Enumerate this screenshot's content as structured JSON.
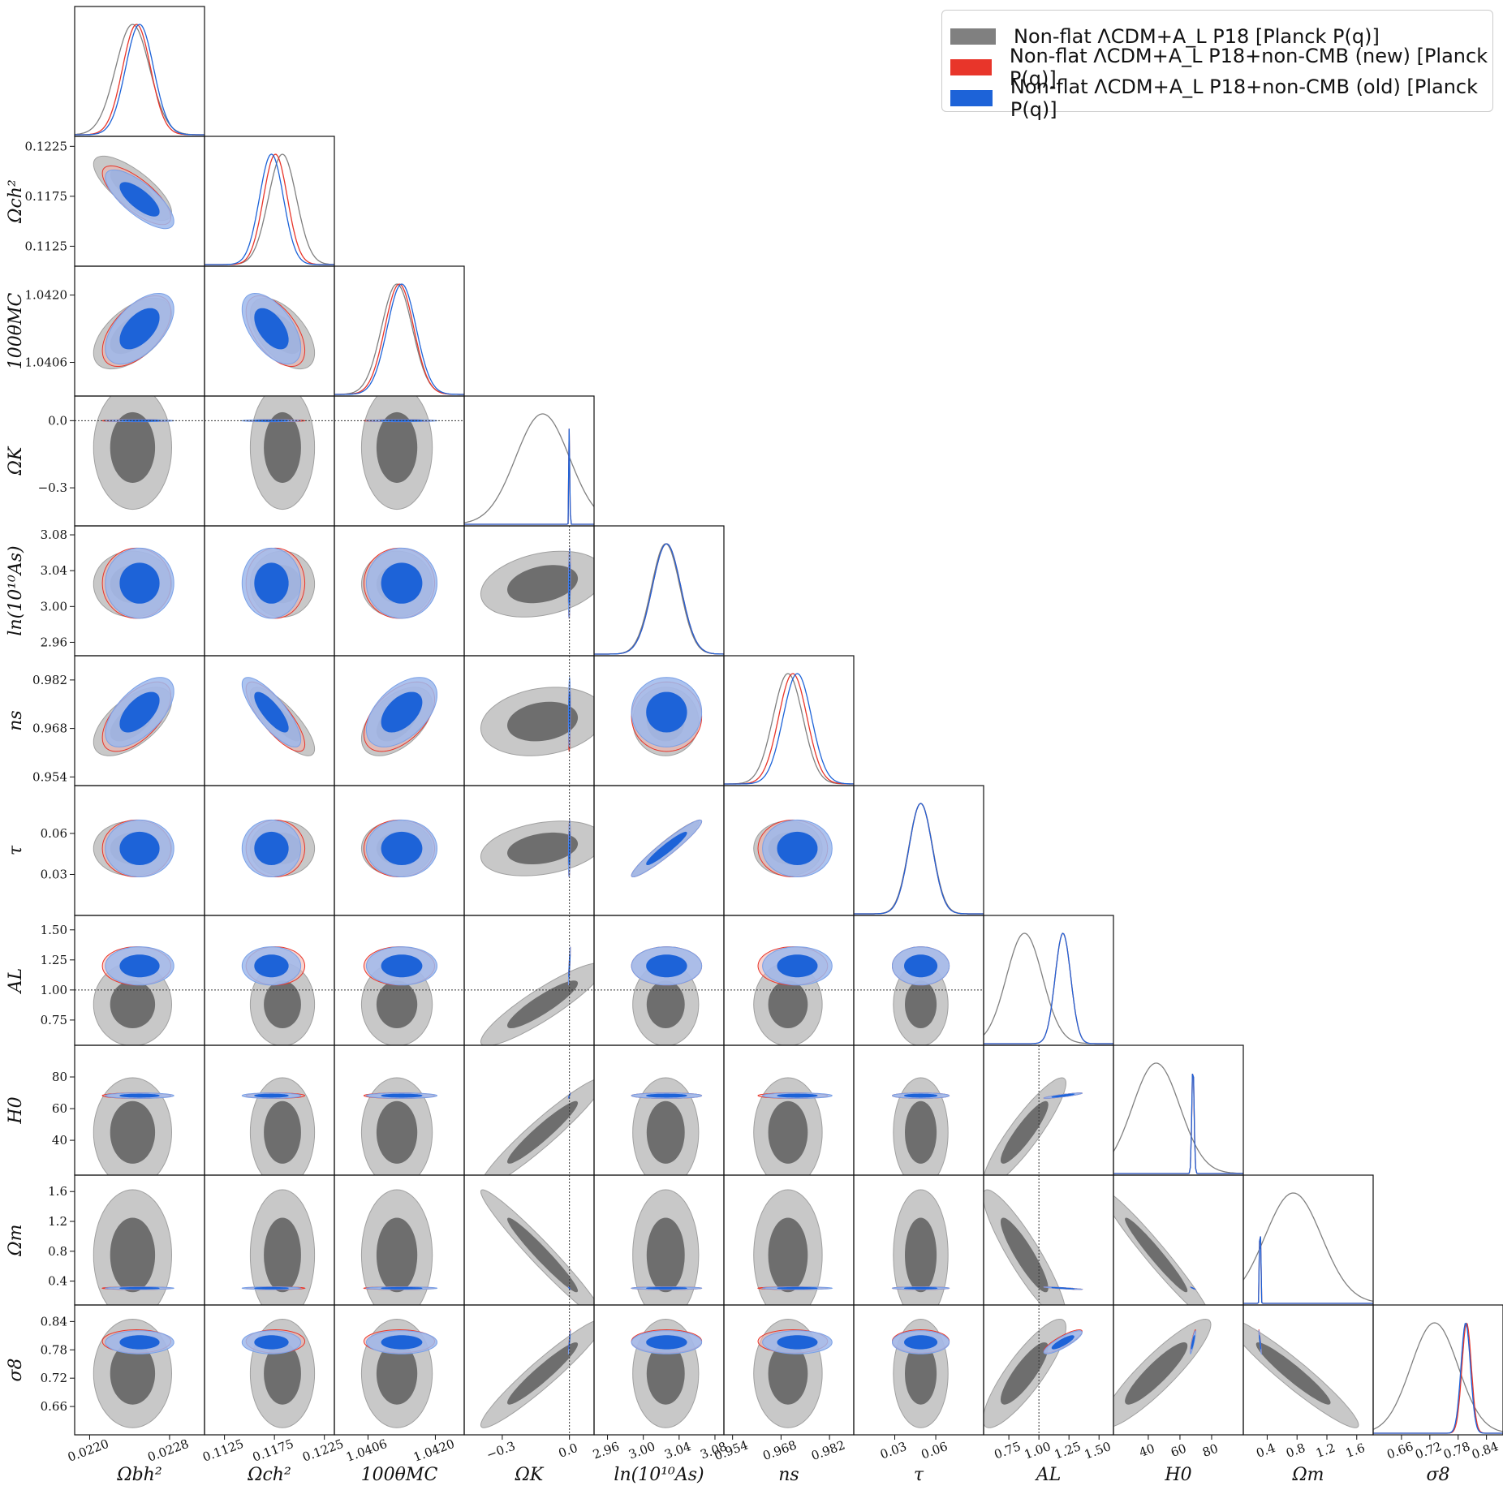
{
  "colors": {
    "grey_dark": "#6e6e6e",
    "grey_light": "#c8c8c8",
    "red": "#e8352a",
    "blue": "#1d63d8",
    "blue_light": "#9db8ec"
  },
  "legend": {
    "placement": "top-right",
    "entries": [
      {
        "label": "Non-flat ΛCDM+A_L P18 [Planck P(q)]",
        "color": "#808080"
      },
      {
        "label": "Non-flat ΛCDM+A_L P18+non-CMB (new) [Planck P(q)]",
        "color": "#e8352a"
      },
      {
        "label": "Non-flat ΛCDM+A_L P18+non-CMB (old) [Planck P(q)]",
        "color": "#1d63d8"
      }
    ]
  },
  "chart_data": {
    "type": "triangle-corner-plot",
    "parameters": [
      {
        "name": "Ωbh²",
        "range": [
          0.02185,
          0.02315
        ],
        "ticks": [
          "0.0220",
          "0.0228"
        ],
        "tick_values": [
          0.022,
          0.0228
        ],
        "grey": {
          "mean": 0.02243,
          "sd": 0.00017
        },
        "red": {
          "mean": 0.02247,
          "sd": 0.00014
        },
        "blue": {
          "mean": 0.0225,
          "sd": 0.00014
        }
      },
      {
        "name": "Ωch²",
        "range": [
          0.1105,
          0.1235
        ],
        "ticks": [
          "0.1125",
          "0.1175",
          "0.1225"
        ],
        "tick_values": [
          0.1125,
          0.1175,
          0.1225
        ],
        "grey": {
          "mean": 0.1183,
          "sd": 0.0014
        },
        "red": {
          "mean": 0.1176,
          "sd": 0.0012
        },
        "blue": {
          "mean": 0.1172,
          "sd": 0.0012
        }
      },
      {
        "name": "100θMC",
        "range": [
          1.0399,
          1.0426
        ],
        "ticks": [
          "1.0406",
          "1.0420"
        ],
        "tick_values": [
          1.0406,
          1.042
        ],
        "grey": {
          "mean": 1.0412,
          "sd": 0.00032
        },
        "red": {
          "mean": 1.04125,
          "sd": 0.0003
        },
        "blue": {
          "mean": 1.0413,
          "sd": 0.0003
        }
      },
      {
        "name": "ΩK",
        "range": [
          -0.47,
          0.11
        ],
        "ticks": [
          "−0.3",
          "0.0"
        ],
        "tick_values": [
          -0.3,
          0.0
        ],
        "grey": {
          "mean": -0.12,
          "sd": 0.12
        },
        "red": {
          "mean": -0.0002,
          "sd": 0.0018
        },
        "blue": {
          "mean": -0.0002,
          "sd": 0.0018
        }
      },
      {
        "name": "ln(10¹⁰As)",
        "range": [
          2.945,
          3.09
        ],
        "ticks": [
          "2.96",
          "3.00",
          "3.04",
          "3.08"
        ],
        "tick_values": [
          2.96,
          3.0,
          3.04,
          3.08
        ],
        "grey": {
          "mean": 3.025,
          "sd": 0.016
        },
        "red": {
          "mean": 3.026,
          "sd": 0.016
        },
        "blue": {
          "mean": 3.026,
          "sd": 0.016
        }
      },
      {
        "name": "ns",
        "range": [
          0.9515,
          0.989
        ],
        "ticks": [
          "0.954",
          "0.968",
          "0.982"
        ],
        "tick_values": [
          0.954,
          0.968,
          0.982
        ],
        "grey": {
          "mean": 0.97,
          "sd": 0.0043
        },
        "red": {
          "mean": 0.9714,
          "sd": 0.0041
        },
        "blue": {
          "mean": 0.9727,
          "sd": 0.0041
        }
      },
      {
        "name": "τ",
        "range": [
          0.0,
          0.095
        ],
        "ticks": [
          "0.03",
          "0.06"
        ],
        "tick_values": [
          0.03,
          0.06
        ],
        "grey": {
          "mean": 0.049,
          "sd": 0.0087
        },
        "red": {
          "mean": 0.049,
          "sd": 0.0085
        },
        "blue": {
          "mean": 0.049,
          "sd": 0.0085
        }
      },
      {
        "name": "AL",
        "range": [
          0.54,
          1.62
        ],
        "ticks": [
          "0.75",
          "1.00",
          "1.25",
          "1.50"
        ],
        "tick_values": [
          0.75,
          1.0,
          1.25,
          1.5
        ],
        "grey": {
          "mean": 0.88,
          "sd": 0.15
        },
        "red": {
          "mean": 1.2,
          "sd": 0.065
        },
        "blue": {
          "mean": 1.2,
          "sd": 0.065
        }
      },
      {
        "name": "H0",
        "range": [
          18,
          100
        ],
        "ticks": [
          "40",
          "60",
          "80"
        ],
        "tick_values": [
          40,
          60,
          80
        ],
        "grey": {
          "mean": 45,
          "sd": 15
        },
        "red": {
          "mean": 68.2,
          "sd": 0.7
        },
        "blue": {
          "mean": 68.2,
          "sd": 0.7
        }
      },
      {
        "name": "Ωm",
        "range": [
          0.08,
          1.82
        ],
        "ticks": [
          "0.4",
          "0.8",
          "1.2",
          "1.6"
        ],
        "tick_values": [
          0.4,
          0.8,
          1.2,
          1.6
        ],
        "grey": {
          "mean": 0.75,
          "sd": 0.38
        },
        "red": {
          "mean": 0.305,
          "sd": 0.007
        },
        "blue": {
          "mean": 0.305,
          "sd": 0.007
        }
      },
      {
        "name": "σ8",
        "range": [
          0.6,
          0.875
        ],
        "ticks": [
          "0.66",
          "0.72",
          "0.78",
          "0.84"
        ],
        "tick_values": [
          0.66,
          0.72,
          0.78,
          0.84
        ],
        "grey": {
          "mean": 0.73,
          "sd": 0.05
        },
        "red": {
          "mean": 0.798,
          "sd": 0.01
        },
        "blue": {
          "mean": 0.796,
          "sd": 0.01
        }
      }
    ],
    "correlations": {
      "1,0": -0.75,
      "2,0": 0.55,
      "2,1": -0.55,
      "5,0": 0.6,
      "5,1": -0.8,
      "5,2": 0.5,
      "6,4": 0.95,
      "7,3": 0.9,
      "8,3": 0.95,
      "8,7": 0.9,
      "9,3": -0.97,
      "9,7": -0.9,
      "9,8": -0.97,
      "10,3": 0.95,
      "10,7": 0.85,
      "10,8": 0.9,
      "10,9": -0.95,
      "4,3": 0.3,
      "6,3": 0.3,
      "5,3": 0.2
    },
    "reference_lines": [
      {
        "parameter": "ΩK",
        "value": 0.0
      },
      {
        "parameter": "AL",
        "value": 1.0
      }
    ]
  }
}
